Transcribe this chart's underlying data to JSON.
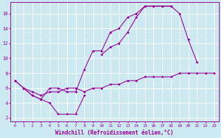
{
  "xlabel": "Windchill (Refroidissement éolien,°C)",
  "bg_color": "#cce8f0",
  "line_color": "#990099",
  "xlim": [
    -0.5,
    23.5
  ],
  "ylim": [
    1.5,
    17.5
  ],
  "xticks": [
    0,
    1,
    2,
    3,
    4,
    5,
    6,
    7,
    8,
    9,
    10,
    11,
    12,
    13,
    14,
    15,
    16,
    17,
    18,
    19,
    20,
    21,
    22,
    23
  ],
  "yticks": [
    2,
    4,
    6,
    8,
    10,
    12,
    14,
    16
  ],
  "line1_x": [
    0,
    1,
    2,
    3,
    4,
    5,
    6,
    7,
    8
  ],
  "line1_y": [
    7.0,
    6.0,
    5.0,
    4.5,
    4.0,
    2.5,
    2.5,
    2.5,
    5.0
  ],
  "line2_x": [
    0,
    1,
    2,
    3,
    4,
    5,
    6,
    7,
    8,
    9,
    10,
    11,
    12,
    13,
    14,
    15,
    16,
    17,
    18,
    19,
    20,
    21
  ],
  "line2_y": [
    7.0,
    6.0,
    5.0,
    4.5,
    6.0,
    6.0,
    5.5,
    5.5,
    8.5,
    11.0,
    11.0,
    13.5,
    14.0,
    15.5,
    16.0,
    17.0,
    17.0,
    17.0,
    17.0,
    16.0,
    12.5,
    9.5
  ],
  "line3_x": [
    10,
    11,
    12,
    13,
    14,
    15,
    16,
    17,
    18
  ],
  "line3_y": [
    10.5,
    11.5,
    12.0,
    13.5,
    15.5,
    17.0,
    17.0,
    17.0,
    17.0
  ],
  "line4_x": [
    1,
    2,
    3,
    4,
    5,
    6,
    7,
    8,
    9,
    10,
    11,
    12,
    13,
    14,
    15,
    16,
    17,
    18,
    19,
    20,
    21,
    22,
    23
  ],
  "line4_y": [
    6.0,
    5.5,
    5.0,
    5.5,
    5.5,
    6.0,
    6.0,
    5.5,
    6.0,
    6.0,
    6.5,
    6.5,
    7.0,
    7.0,
    7.5,
    7.5,
    7.5,
    7.5,
    8.0,
    8.0,
    8.0,
    8.0,
    8.0
  ]
}
